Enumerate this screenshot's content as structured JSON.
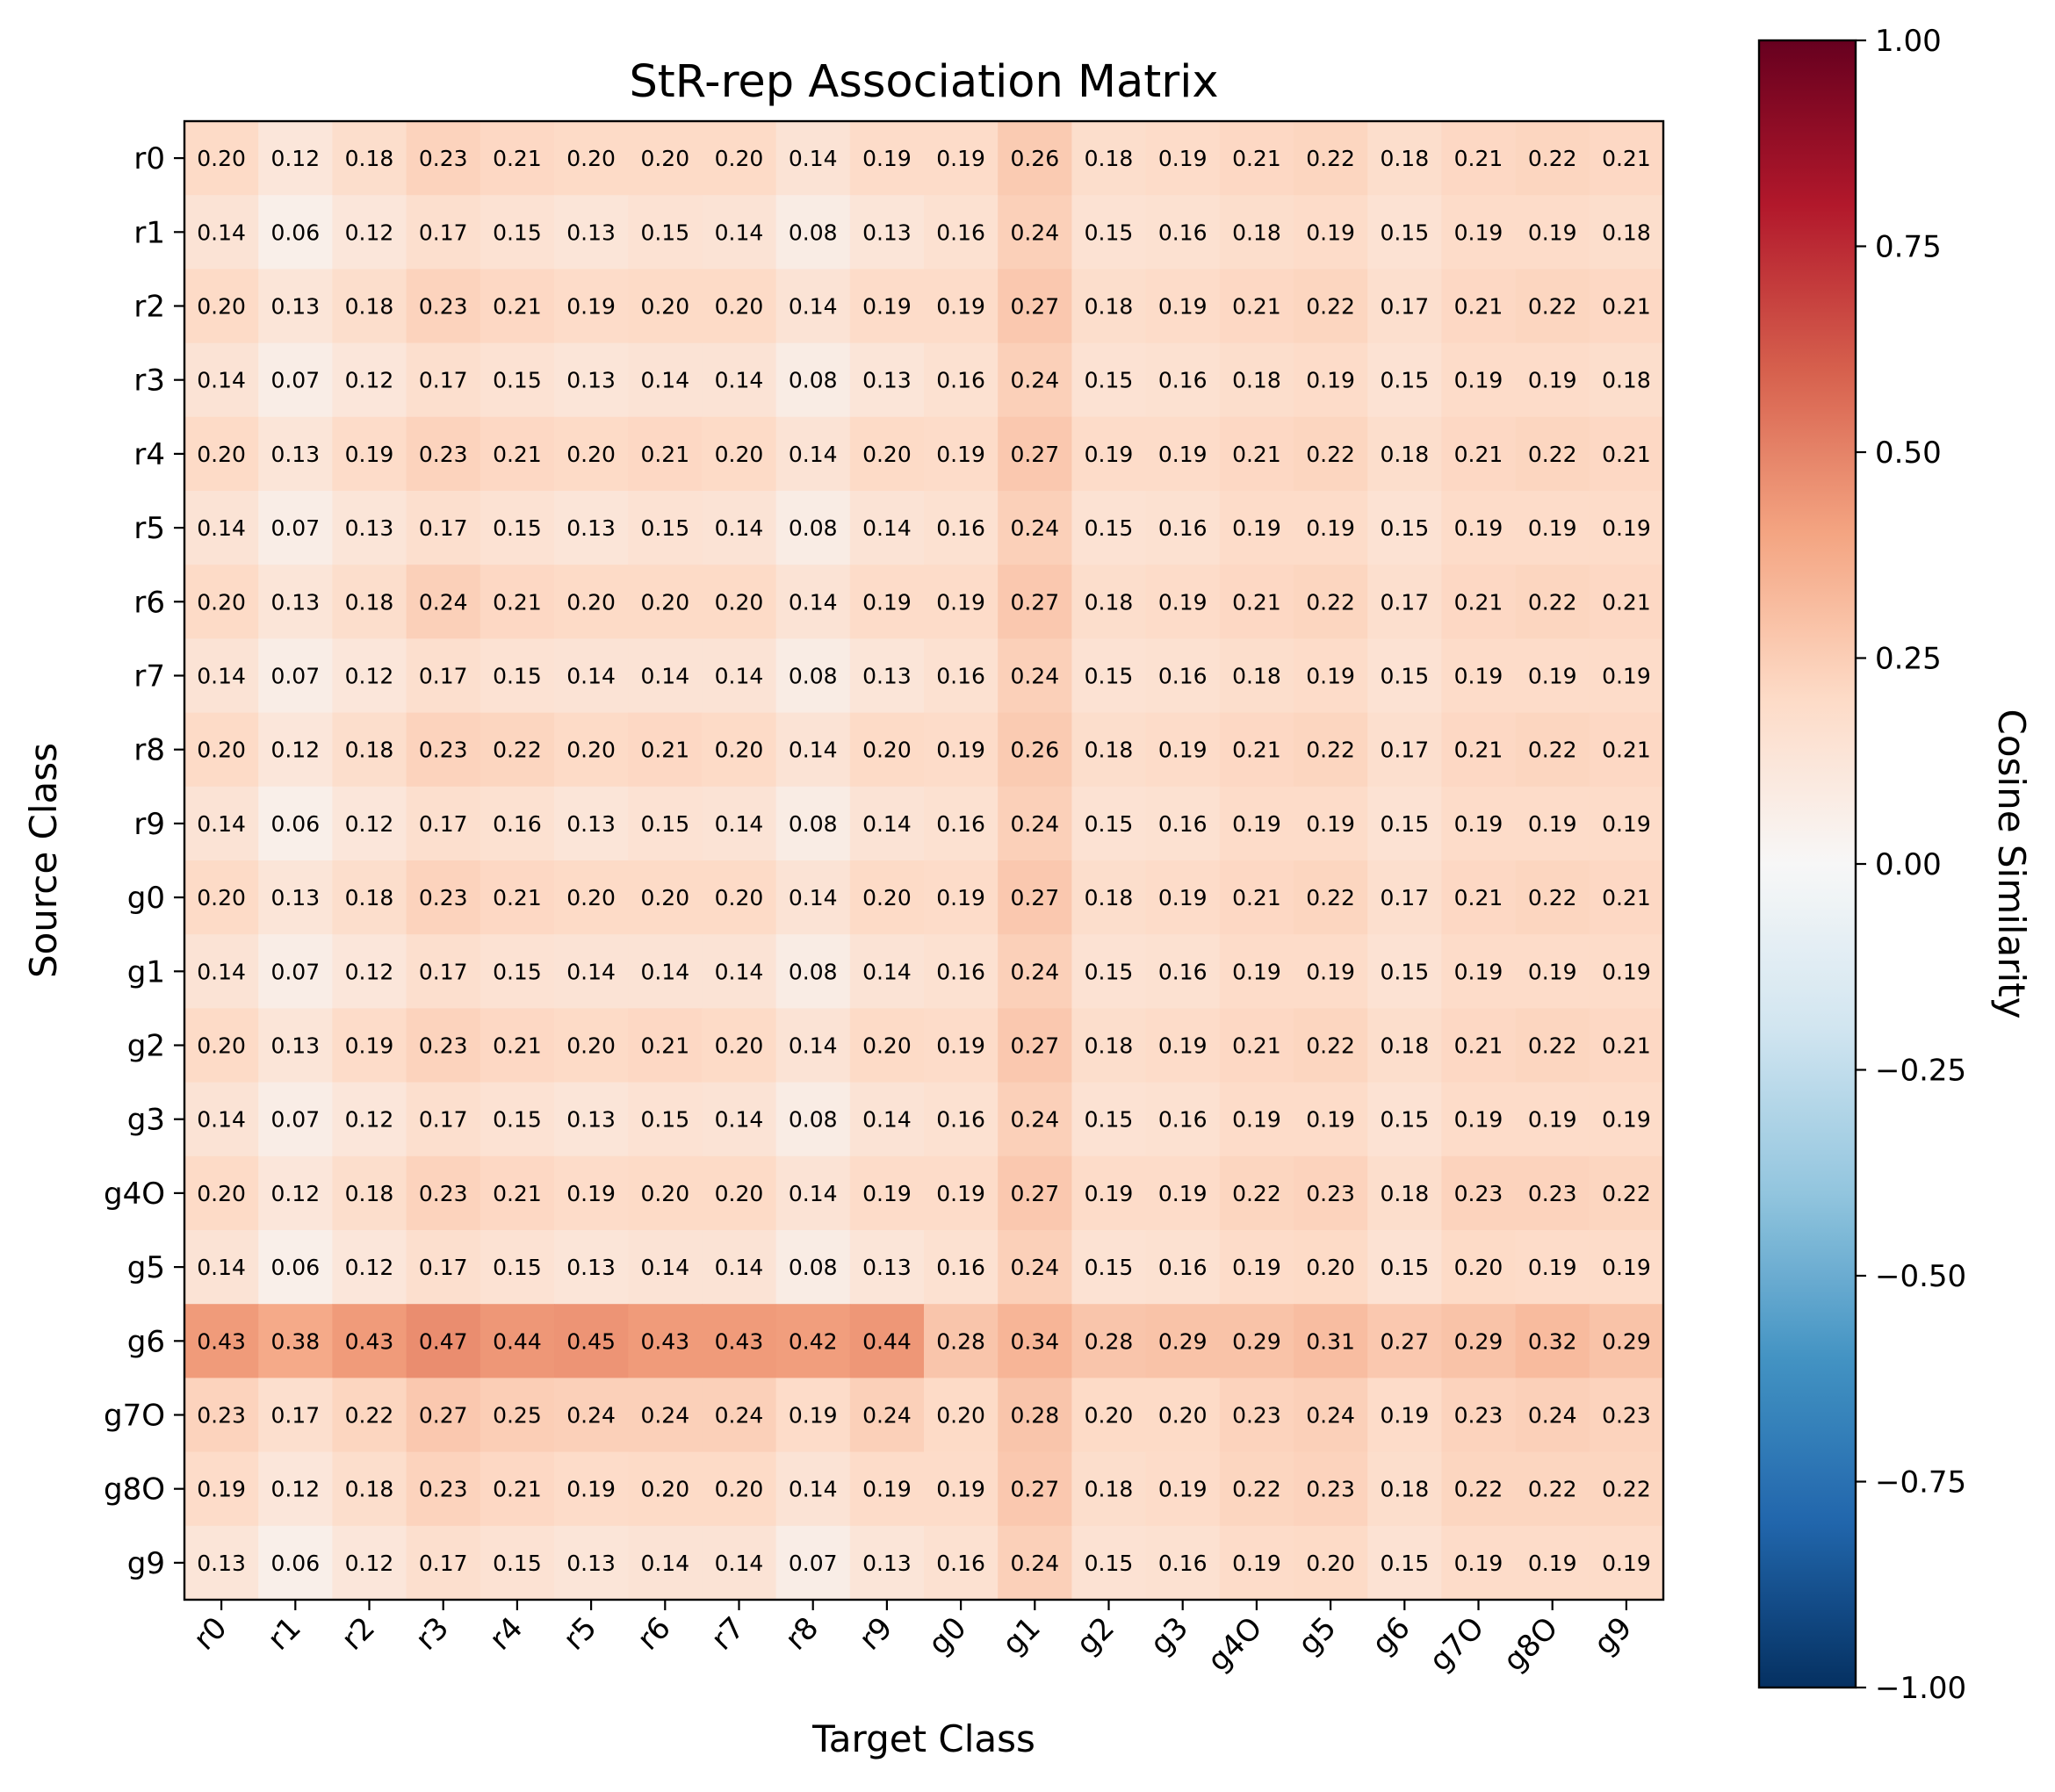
{
  "chart_data": {
    "type": "heatmap",
    "title": "StR-rep Association Matrix",
    "xlabel": "Target Class",
    "ylabel": "Source Class",
    "x_categories": [
      "r0",
      "r1",
      "r2",
      "r3",
      "r4",
      "r5",
      "r6",
      "r7",
      "r8",
      "r9",
      "g0",
      "g1",
      "g2",
      "g3",
      "g4O",
      "g5",
      "g6",
      "g7O",
      "g8O",
      "g9"
    ],
    "y_categories": [
      "r0",
      "r1",
      "r2",
      "r3",
      "r4",
      "r5",
      "r6",
      "r7",
      "r8",
      "r9",
      "g0",
      "g1",
      "g2",
      "g3",
      "g4O",
      "g5",
      "g6",
      "g7O",
      "g8O",
      "g9"
    ],
    "values": [
      [
        0.2,
        0.12,
        0.18,
        0.23,
        0.21,
        0.2,
        0.2,
        0.2,
        0.14,
        0.19,
        0.19,
        0.26,
        0.18,
        0.19,
        0.21,
        0.22,
        0.18,
        0.21,
        0.22,
        0.21
      ],
      [
        0.14,
        0.06,
        0.12,
        0.17,
        0.15,
        0.13,
        0.15,
        0.14,
        0.08,
        0.13,
        0.16,
        0.24,
        0.15,
        0.16,
        0.18,
        0.19,
        0.15,
        0.19,
        0.19,
        0.18
      ],
      [
        0.2,
        0.13,
        0.18,
        0.23,
        0.21,
        0.19,
        0.2,
        0.2,
        0.14,
        0.19,
        0.19,
        0.27,
        0.18,
        0.19,
        0.21,
        0.22,
        0.17,
        0.21,
        0.22,
        0.21
      ],
      [
        0.14,
        0.07,
        0.12,
        0.17,
        0.15,
        0.13,
        0.14,
        0.14,
        0.08,
        0.13,
        0.16,
        0.24,
        0.15,
        0.16,
        0.18,
        0.19,
        0.15,
        0.19,
        0.19,
        0.18
      ],
      [
        0.2,
        0.13,
        0.19,
        0.23,
        0.21,
        0.2,
        0.21,
        0.2,
        0.14,
        0.2,
        0.19,
        0.27,
        0.19,
        0.19,
        0.21,
        0.22,
        0.18,
        0.21,
        0.22,
        0.21
      ],
      [
        0.14,
        0.07,
        0.13,
        0.17,
        0.15,
        0.13,
        0.15,
        0.14,
        0.08,
        0.14,
        0.16,
        0.24,
        0.15,
        0.16,
        0.19,
        0.19,
        0.15,
        0.19,
        0.19,
        0.19
      ],
      [
        0.2,
        0.13,
        0.18,
        0.24,
        0.21,
        0.2,
        0.2,
        0.2,
        0.14,
        0.19,
        0.19,
        0.27,
        0.18,
        0.19,
        0.21,
        0.22,
        0.17,
        0.21,
        0.22,
        0.21
      ],
      [
        0.14,
        0.07,
        0.12,
        0.17,
        0.15,
        0.14,
        0.14,
        0.14,
        0.08,
        0.13,
        0.16,
        0.24,
        0.15,
        0.16,
        0.18,
        0.19,
        0.15,
        0.19,
        0.19,
        0.19
      ],
      [
        0.2,
        0.12,
        0.18,
        0.23,
        0.22,
        0.2,
        0.21,
        0.2,
        0.14,
        0.2,
        0.19,
        0.26,
        0.18,
        0.19,
        0.21,
        0.22,
        0.17,
        0.21,
        0.22,
        0.21
      ],
      [
        0.14,
        0.06,
        0.12,
        0.17,
        0.16,
        0.13,
        0.15,
        0.14,
        0.08,
        0.14,
        0.16,
        0.24,
        0.15,
        0.16,
        0.19,
        0.19,
        0.15,
        0.19,
        0.19,
        0.19
      ],
      [
        0.2,
        0.13,
        0.18,
        0.23,
        0.21,
        0.2,
        0.2,
        0.2,
        0.14,
        0.2,
        0.19,
        0.27,
        0.18,
        0.19,
        0.21,
        0.22,
        0.17,
        0.21,
        0.22,
        0.21
      ],
      [
        0.14,
        0.07,
        0.12,
        0.17,
        0.15,
        0.14,
        0.14,
        0.14,
        0.08,
        0.14,
        0.16,
        0.24,
        0.15,
        0.16,
        0.19,
        0.19,
        0.15,
        0.19,
        0.19,
        0.19
      ],
      [
        0.2,
        0.13,
        0.19,
        0.23,
        0.21,
        0.2,
        0.21,
        0.2,
        0.14,
        0.2,
        0.19,
        0.27,
        0.18,
        0.19,
        0.21,
        0.22,
        0.18,
        0.21,
        0.22,
        0.21
      ],
      [
        0.14,
        0.07,
        0.12,
        0.17,
        0.15,
        0.13,
        0.15,
        0.14,
        0.08,
        0.14,
        0.16,
        0.24,
        0.15,
        0.16,
        0.19,
        0.19,
        0.15,
        0.19,
        0.19,
        0.19
      ],
      [
        0.2,
        0.12,
        0.18,
        0.23,
        0.21,
        0.19,
        0.2,
        0.2,
        0.14,
        0.19,
        0.19,
        0.27,
        0.19,
        0.19,
        0.22,
        0.23,
        0.18,
        0.23,
        0.23,
        0.22
      ],
      [
        0.14,
        0.06,
        0.12,
        0.17,
        0.15,
        0.13,
        0.14,
        0.14,
        0.08,
        0.13,
        0.16,
        0.24,
        0.15,
        0.16,
        0.19,
        0.2,
        0.15,
        0.2,
        0.19,
        0.19
      ],
      [
        0.43,
        0.38,
        0.43,
        0.47,
        0.44,
        0.45,
        0.43,
        0.43,
        0.42,
        0.44,
        0.28,
        0.34,
        0.28,
        0.29,
        0.29,
        0.31,
        0.27,
        0.29,
        0.32,
        0.29
      ],
      [
        0.23,
        0.17,
        0.22,
        0.27,
        0.25,
        0.24,
        0.24,
        0.24,
        0.19,
        0.24,
        0.2,
        0.28,
        0.2,
        0.2,
        0.23,
        0.24,
        0.19,
        0.23,
        0.24,
        0.23
      ],
      [
        0.19,
        0.12,
        0.18,
        0.23,
        0.21,
        0.19,
        0.2,
        0.2,
        0.14,
        0.19,
        0.19,
        0.27,
        0.18,
        0.19,
        0.22,
        0.23,
        0.18,
        0.22,
        0.22,
        0.22
      ],
      [
        0.13,
        0.06,
        0.12,
        0.17,
        0.15,
        0.13,
        0.14,
        0.14,
        0.07,
        0.13,
        0.16,
        0.24,
        0.15,
        0.16,
        0.19,
        0.2,
        0.15,
        0.19,
        0.19,
        0.19
      ]
    ],
    "colormap": "RdBu_r",
    "vmin": -1.0,
    "vmax": 1.0,
    "colorbar_label": "Cosine Similarity",
    "colorbar_ticks": [
      "1.00",
      "0.75",
      "0.50",
      "0.25",
      "0.00",
      "−0.25",
      "−0.50",
      "−0.75",
      "−1.00"
    ],
    "colorbar_tick_values": [
      1.0,
      0.75,
      0.5,
      0.25,
      0.0,
      -0.25,
      -0.5,
      -0.75,
      -1.0
    ],
    "grid": false
  }
}
